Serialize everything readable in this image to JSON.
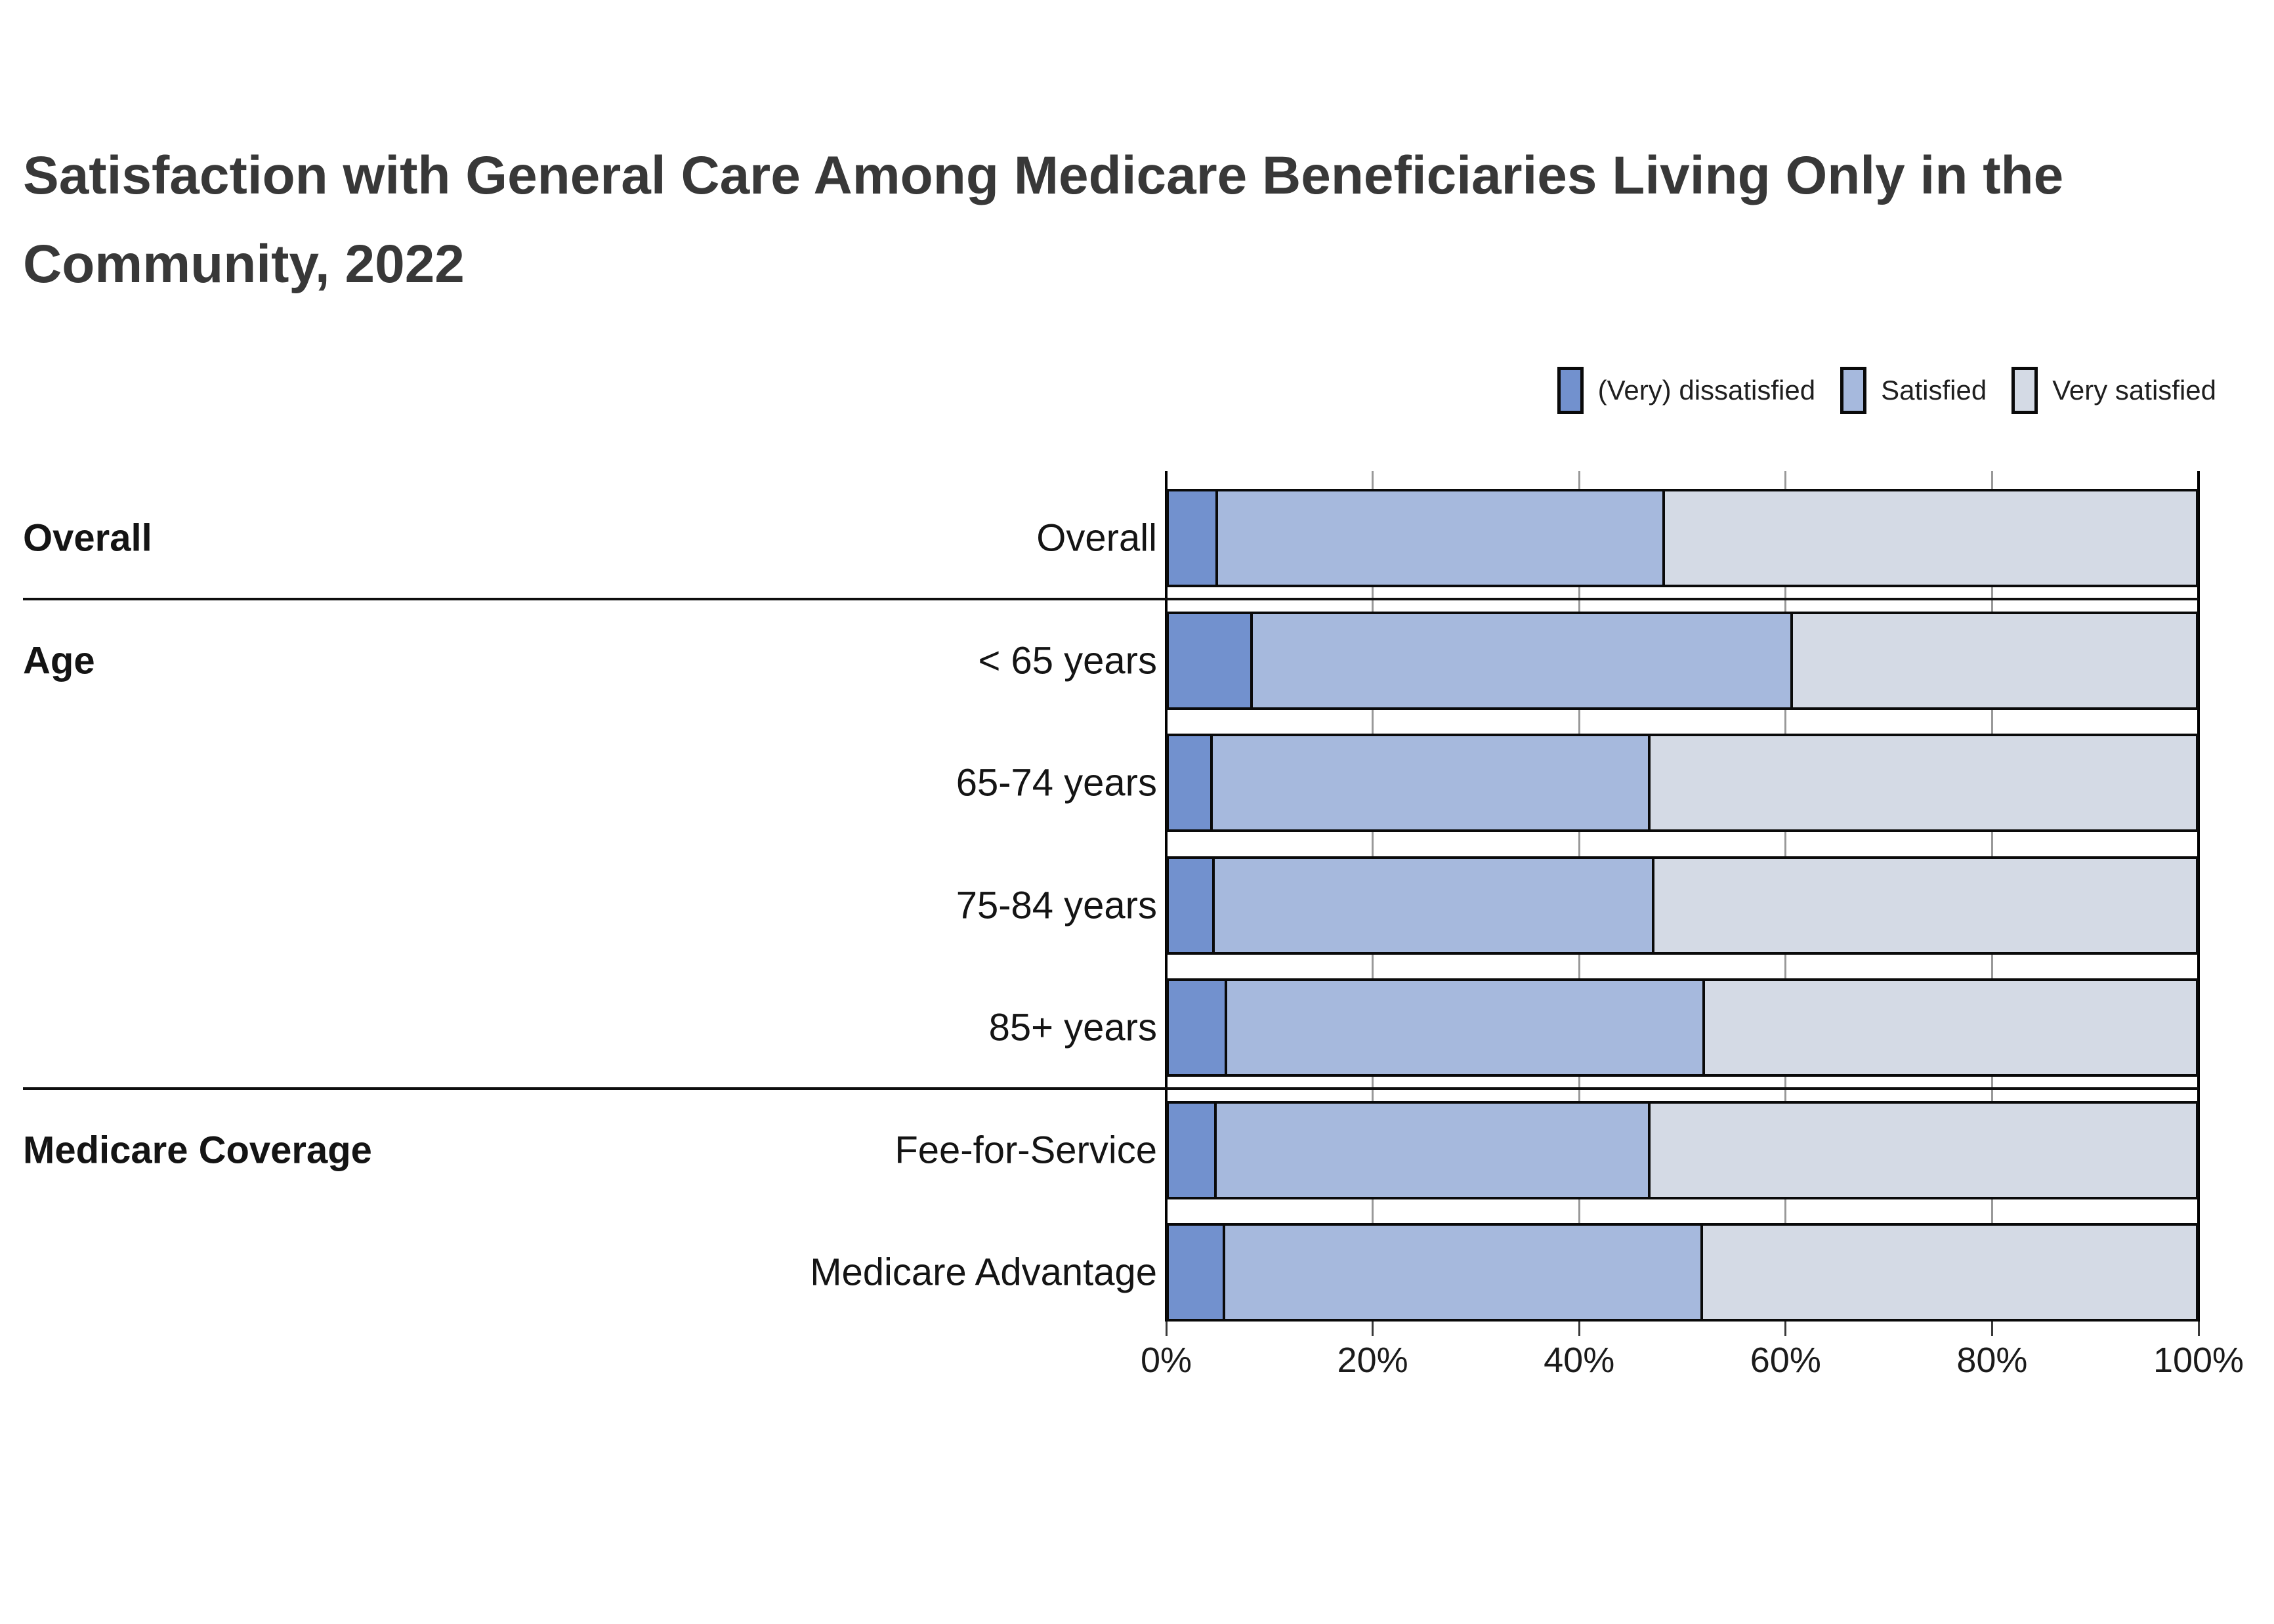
{
  "title": "Satisfaction with General Care Among Medicare Beneficiaries Living Only in the Community, 2022",
  "title_color": "#383838",
  "legend": [
    {
      "label": "(Very) dissatisfied",
      "color": "#7291CE"
    },
    {
      "label": "Satisfied",
      "color": "#A6B9DD"
    },
    {
      "label": "Very satisfied",
      "color": "#D4DAE5"
    }
  ],
  "axis": {
    "tick_labels": [
      "0%",
      "20%",
      "40%",
      "60%",
      "80%",
      "100%"
    ],
    "tick_values": [
      0,
      20,
      40,
      60,
      80,
      100
    ],
    "gridline_color": "#999999"
  },
  "groups": [
    {
      "name": "Overall",
      "rows": [
        {
          "label": "Overall",
          "values": [
            5,
            43.3,
            51.7
          ]
        }
      ]
    },
    {
      "name": "Age",
      "rows": [
        {
          "label": "< 65 years",
          "values": [
            8.4,
            52.3,
            39.3
          ]
        },
        {
          "label": "65-74 years",
          "values": [
            4.5,
            42.4,
            53.1
          ]
        },
        {
          "label": "75-84 years",
          "values": [
            4.7,
            42.6,
            52.7
          ]
        },
        {
          "label": "85+ years",
          "values": [
            5.9,
            46.3,
            47.8
          ]
        }
      ]
    },
    {
      "name": "Medicare Coverage",
      "rows": [
        {
          "label": "Fee-for-Service",
          "values": [
            4.9,
            42,
            53.1
          ]
        },
        {
          "label": "Medicare Advantage",
          "values": [
            5.7,
            46.3,
            48
          ]
        }
      ]
    }
  ],
  "chart_data": {
    "type": "bar",
    "orientation": "horizontal",
    "stacked": true,
    "title": "Satisfaction with General Care Among Medicare Beneficiaries Living Only in the Community, 2022",
    "categories": [
      "Overall",
      "< 65 years",
      "65-74 years",
      "75-84 years",
      "85+ years",
      "Fee-for-Service",
      "Medicare Advantage"
    ],
    "category_groups": [
      "Overall",
      "Age",
      "Age",
      "Age",
      "Age",
      "Medicare Coverage",
      "Medicare Coverage"
    ],
    "series": [
      {
        "name": "(Very) dissatisfied",
        "values": [
          5,
          8.4,
          4.5,
          4.7,
          5.9,
          4.9,
          5.7
        ]
      },
      {
        "name": "Satisfied",
        "values": [
          43.3,
          52.3,
          42.4,
          42.6,
          46.3,
          42,
          46.3
        ]
      },
      {
        "name": "Very satisfied",
        "values": [
          51.7,
          39.3,
          53.1,
          52.7,
          47.8,
          53.1,
          48
        ]
      }
    ],
    "xlabel": "",
    "ylabel": "",
    "xlim": [
      0,
      100
    ],
    "x_tick_labels": [
      "0%",
      "20%",
      "40%",
      "60%",
      "80%",
      "100%"
    ],
    "grid": true,
    "legend_position": "top-right"
  }
}
